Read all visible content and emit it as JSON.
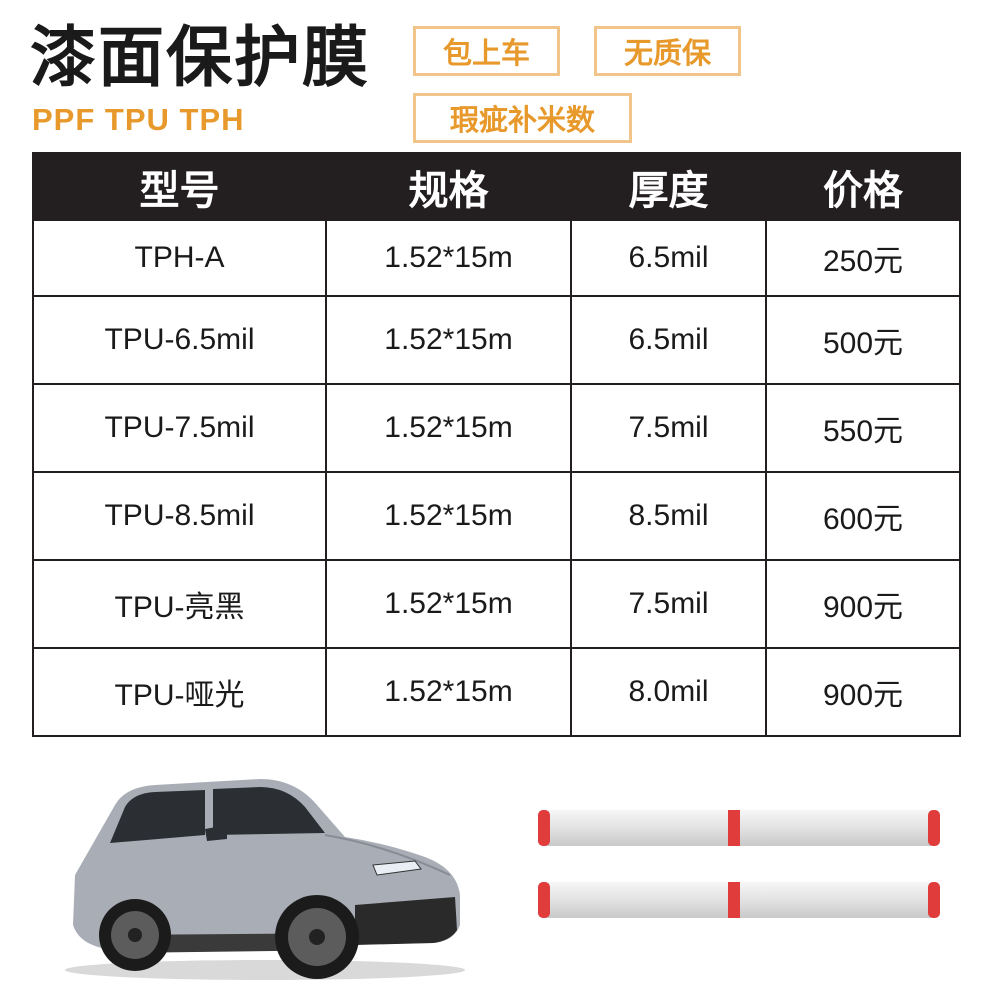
{
  "header": {
    "title": "漆面保护膜",
    "subtitle": "PPF TPU TPH",
    "badges": [
      "包上车",
      "无质保",
      "瑕疵补米数"
    ]
  },
  "table": {
    "columns": [
      "型号",
      "规格",
      "厚度",
      "价格"
    ],
    "rows": [
      [
        "TPH-A",
        "1.52*15m",
        "6.5mil",
        "250元"
      ],
      [
        "TPU-6.5mil",
        "1.52*15m",
        "6.5mil",
        "500元"
      ],
      [
        "TPU-7.5mil",
        "1.52*15m",
        "7.5mil",
        "550元"
      ],
      [
        "TPU-8.5mil",
        "1.52*15m",
        "8.5mil",
        "600元"
      ],
      [
        "TPU-亮黑",
        "1.52*15m",
        "7.5mil",
        "900元"
      ],
      [
        "TPU-哑光",
        "1.52*15m",
        "8.0mil",
        "900元"
      ]
    ]
  },
  "colors": {
    "accent": "#e8992c",
    "badge_border": "#f1c58a",
    "header_bg": "#231f20",
    "roll_cap": "#e03c3c"
  },
  "images": {
    "car": "suv-car-image",
    "rolls": "film-roll-image"
  }
}
